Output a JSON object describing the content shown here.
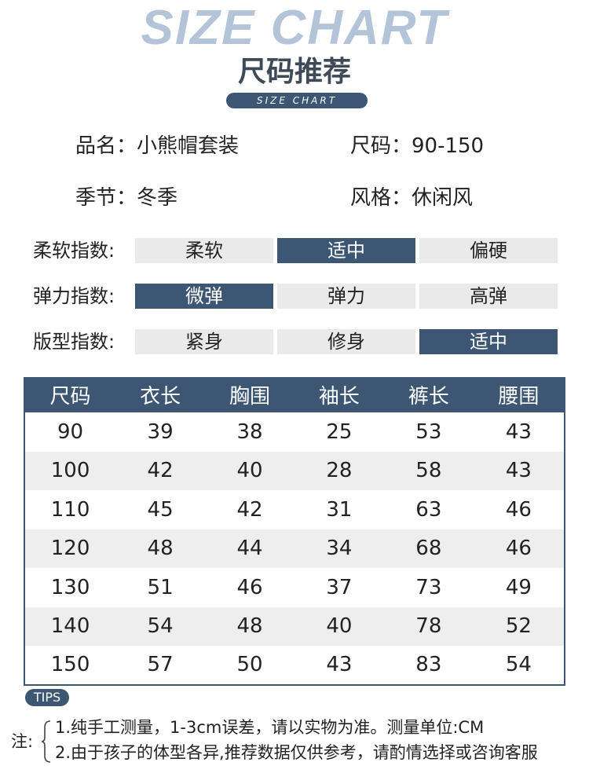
{
  "header": {
    "bg_text": "SIZE CHART",
    "title": "尺码推荐",
    "subtitle": "SIZE CHART"
  },
  "info": {
    "name": "品名：小熊帽套装",
    "size": "尺码：90-150",
    "season": "季节：冬季",
    "style": "风格：休闲风"
  },
  "indices": [
    {
      "label": "柔软指数:",
      "options": [
        "柔软",
        "适中",
        "偏硬"
      ],
      "selected": 1
    },
    {
      "label": "弹力指数:",
      "options": [
        "微弹",
        "弹力",
        "高弹"
      ],
      "selected": 0
    },
    {
      "label": "版型指数:",
      "options": [
        "紧身",
        "修身",
        "适中"
      ],
      "selected": 2
    }
  ],
  "table": {
    "headers": [
      "尺码",
      "衣长",
      "胸围",
      "袖长",
      "裤长",
      "腰围"
    ],
    "rows": [
      [
        "90",
        "39",
        "38",
        "25",
        "53",
        "43"
      ],
      [
        "100",
        "42",
        "40",
        "28",
        "58",
        "43"
      ],
      [
        "110",
        "45",
        "42",
        "31",
        "63",
        "46"
      ],
      [
        "120",
        "48",
        "44",
        "34",
        "68",
        "46"
      ],
      [
        "130",
        "51",
        "46",
        "37",
        "73",
        "49"
      ],
      [
        "140",
        "54",
        "48",
        "40",
        "78",
        "52"
      ],
      [
        "150",
        "57",
        "50",
        "43",
        "83",
        "54"
      ]
    ]
  },
  "tips": {
    "badge": "TIPS",
    "prefix": "注:",
    "lines": [
      "1.纯手工测量，1-3cm误差，请以实物为准。测量单位:CM",
      "2.由于孩子的体型各异,推荐数据仅供参考，请酌情选择或咨询客服"
    ]
  },
  "colors": {
    "accent": "#3d5673",
    "bg_text": "#b4c4d8",
    "option_bg": "#eaeaea"
  }
}
